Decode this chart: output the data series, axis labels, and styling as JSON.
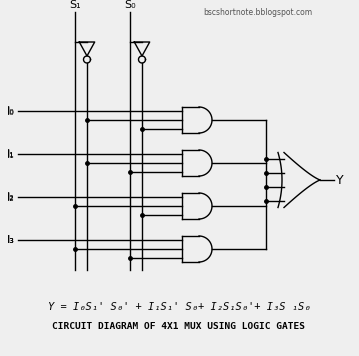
{
  "bg_color": "#efefef",
  "line_color": "#000000",
  "title": "CIRCUIT DIAGRAM OF 4X1 MUX USING LOGIC GATES",
  "equation": "Y = I₀S₁' S₀' + I₁S₁' S₀+ I₂S₁S₀'+ I₃S ₁S₀",
  "watermark": "bscshortnote.bblogspot.com",
  "s1_label": "S₁",
  "s0_label": "S₀",
  "y_label": "Y",
  "input_labels": [
    "I₀",
    "I₁",
    "I₂",
    "I₃"
  ],
  "figsize": [
    3.59,
    3.56
  ],
  "dpi": 100
}
